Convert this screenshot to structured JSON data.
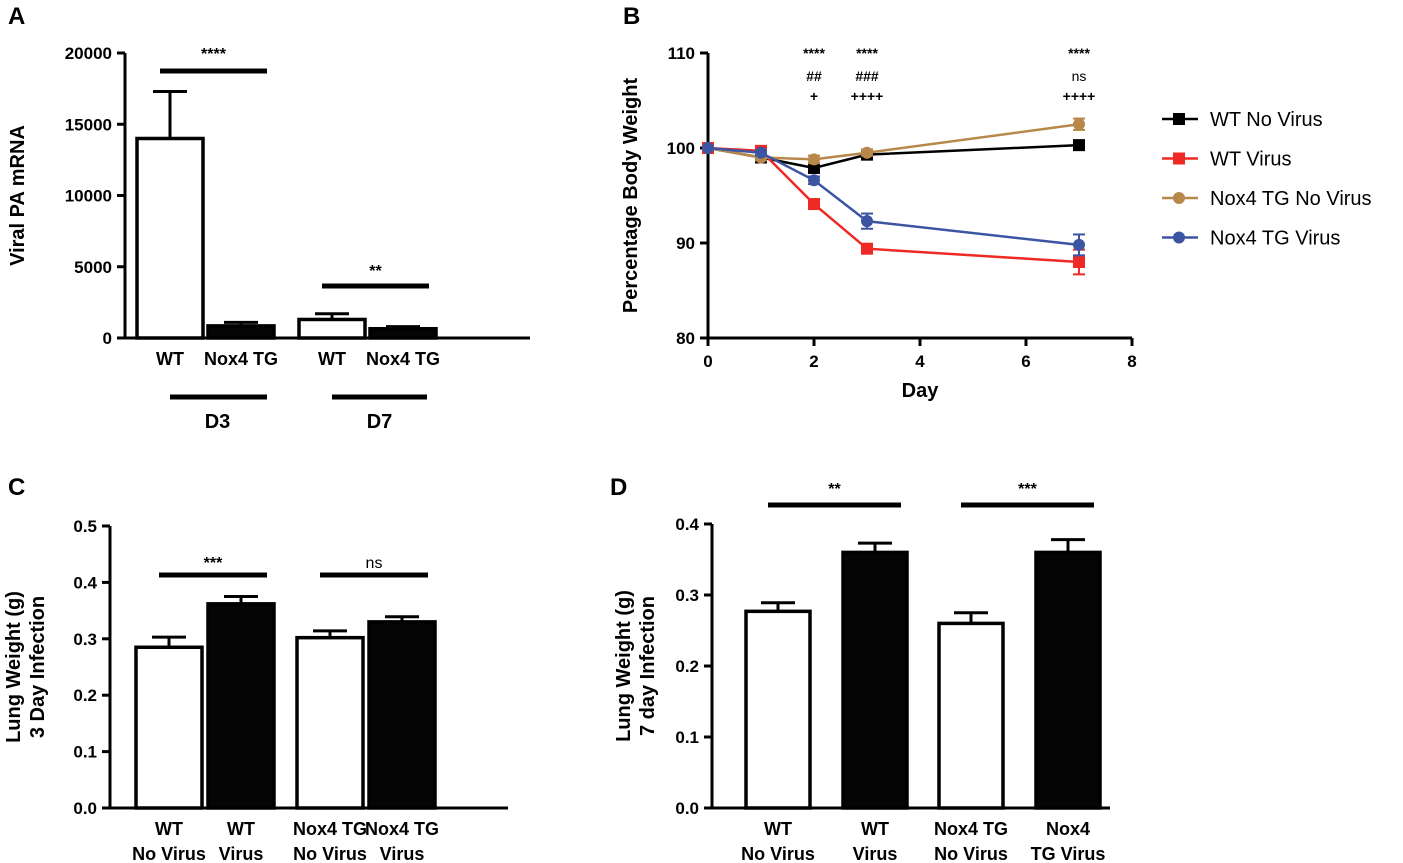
{
  "chart_data": [
    {
      "panel": "A",
      "type": "bar",
      "ylabel": "Viral PA mRNA",
      "ylim": [
        0,
        20000
      ],
      "yticks": [
        0,
        5000,
        10000,
        15000,
        20000
      ],
      "categories": [
        "WT",
        "Nox4 TG",
        "WT",
        "Nox4 TG"
      ],
      "groups": [
        {
          "label": "D3",
          "members": [
            0,
            1
          ]
        },
        {
          "label": "D7",
          "members": [
            2,
            3
          ]
        }
      ],
      "values": [
        14000,
        850,
        1300,
        650
      ],
      "errors": [
        3300,
        250,
        400,
        150
      ],
      "fills": [
        "white",
        "black",
        "white",
        "black"
      ],
      "significance": [
        {
          "between": [
            0,
            1
          ],
          "label": "****"
        },
        {
          "between": [
            2,
            3
          ],
          "label": "**"
        }
      ]
    },
    {
      "panel": "B",
      "type": "line",
      "xlabel": "Day",
      "ylabel": "Percentage Body Weight",
      "xlim": [
        0,
        8
      ],
      "ylim": [
        80,
        110
      ],
      "xticks": [
        0,
        2,
        4,
        6,
        8
      ],
      "yticks": [
        80,
        90,
        100,
        110
      ],
      "series": [
        {
          "name": "WT No Virus",
          "color": "#000000",
          "marker": "square",
          "x": [
            0,
            1,
            2,
            3,
            7
          ],
          "values": [
            100,
            99,
            97.9,
            99.3,
            100.3
          ],
          "errors": [
            0,
            0.3,
            0.4,
            0.3,
            0.5
          ]
        },
        {
          "name": "WT Virus",
          "color": "#ee2a24",
          "marker": "square",
          "x": [
            0,
            1,
            2,
            3,
            7
          ],
          "values": [
            100,
            99.7,
            94.1,
            89.4,
            88
          ],
          "errors": [
            0,
            0.3,
            0.5,
            0.4,
            1.3
          ]
        },
        {
          "name": "Nox4 TG No Virus",
          "color": "#b8884a",
          "marker": "circle",
          "x": [
            0,
            1,
            2,
            3,
            7
          ],
          "values": [
            100,
            99,
            98.8,
            99.5,
            102.5
          ],
          "errors": [
            0,
            0.3,
            0.4,
            0.3,
            0.6
          ]
        },
        {
          "name": "Nox4 TG Virus",
          "color": "#3b55a3",
          "marker": "circle",
          "x": [
            0,
            1,
            2,
            3,
            7
          ],
          "values": [
            100,
            99.5,
            96.6,
            92.3,
            89.8
          ],
          "errors": [
            0,
            0.3,
            0.4,
            0.8,
            1.1
          ]
        }
      ],
      "annotations": [
        {
          "x": 2,
          "rows": [
            "****",
            "##",
            "+"
          ]
        },
        {
          "x": 3,
          "rows": [
            "****",
            "###",
            "++++"
          ]
        },
        {
          "x": 7,
          "rows": [
            "****",
            "ns",
            "++++"
          ]
        }
      ]
    },
    {
      "panel": "C",
      "type": "bar",
      "ylabel": [
        "Lung Weight (g)",
        "3 Day Infection"
      ],
      "ylim": [
        0,
        0.5
      ],
      "yticks": [
        0.0,
        0.1,
        0.2,
        0.3,
        0.4,
        0.5
      ],
      "categories": [
        [
          "WT",
          "No Virus"
        ],
        [
          "WT",
          "Virus"
        ],
        [
          "Nox4 TG",
          "No Virus"
        ],
        [
          "Nox4 TG",
          "Virus"
        ]
      ],
      "values": [
        0.285,
        0.362,
        0.302,
        0.33
      ],
      "errors": [
        0.018,
        0.013,
        0.012,
        0.009
      ],
      "fills": [
        "white",
        "black",
        "white",
        "black"
      ],
      "significance": [
        {
          "between": [
            0,
            1
          ],
          "label": "***"
        },
        {
          "between": [
            2,
            3
          ],
          "label": "ns"
        }
      ]
    },
    {
      "panel": "D",
      "type": "bar",
      "ylabel": [
        "Lung Weight (g)",
        "7 day Infection"
      ],
      "ylim": [
        0,
        0.4
      ],
      "yticks": [
        0.0,
        0.1,
        0.2,
        0.3,
        0.4
      ],
      "categories": [
        [
          "WT",
          "No Virus"
        ],
        [
          "WT",
          "Virus"
        ],
        [
          "Nox4 TG",
          "No Virus"
        ],
        [
          "Nox4",
          "TG Virus"
        ]
      ],
      "values": [
        0.277,
        0.36,
        0.26,
        0.36
      ],
      "errors": [
        0.012,
        0.013,
        0.015,
        0.018
      ],
      "fills": [
        "white",
        "black",
        "white",
        "black"
      ],
      "significance": [
        {
          "between": [
            0,
            1
          ],
          "label": "**"
        },
        {
          "between": [
            2,
            3
          ],
          "label": "***"
        }
      ]
    }
  ]
}
